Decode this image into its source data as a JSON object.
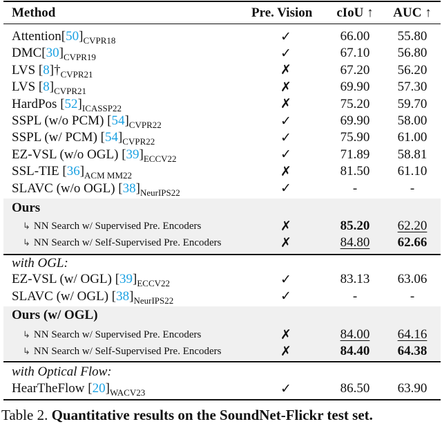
{
  "header": {
    "method": "Method",
    "vision": "Pre. Vision",
    "ciou": "cIoU ↑",
    "auc": "AUC ↑"
  },
  "baselines": [
    {
      "method": "Attention",
      "ref": "50",
      "venue": "CVPR18",
      "vision": "✓",
      "ciou": "66.00",
      "auc": "55.80"
    },
    {
      "method": "DMC",
      "ref": "30",
      "venue": "CVPR19",
      "vision": "✓",
      "ciou": "67.10",
      "auc": "56.80"
    },
    {
      "method": "LVS ",
      "ref": "8",
      "dagger": "†",
      "venue": "CVPR21",
      "vision": "✗",
      "ciou": "67.20",
      "auc": "56.20"
    },
    {
      "method": "LVS ",
      "ref": "8",
      "venue": "CVPR21",
      "vision": "✗",
      "ciou": "69.90",
      "auc": "57.30"
    },
    {
      "method": "HardPos ",
      "ref": "52",
      "venue": "ICASSP22",
      "vision": "✗",
      "ciou": "75.20",
      "auc": "59.70"
    },
    {
      "method": "SSPL (w/o PCM) ",
      "ref": "54",
      "venue": "CVPR22",
      "vision": "✓",
      "ciou": "69.90",
      "auc": "58.00"
    },
    {
      "method": "SSPL (w/ PCM) ",
      "ref": "54",
      "venue": "CVPR22",
      "vision": "✓",
      "ciou": "75.90",
      "auc": "61.00"
    },
    {
      "method": "EZ-VSL (w/o OGL) ",
      "ref": "39",
      "venue": "ECCV22",
      "vision": "✓",
      "ciou": "71.89",
      "auc": "58.81"
    },
    {
      "method": "SSL-TIE ",
      "ref": "36",
      "venue": "ACM MM22",
      "vision": "✗",
      "ciou": "81.50",
      "auc": "61.10"
    },
    {
      "method": "SLAVC (w/o OGL) ",
      "ref": "38",
      "venue": "NeurIPS22",
      "vision": "✓",
      "ciou": "-",
      "auc": "-"
    }
  ],
  "ours": {
    "label": "Ours",
    "rows": [
      {
        "arrow": "↳",
        "method": "NN Search w/ Supervised Pre. Encoders",
        "vision": "✗",
        "ciou": "85.20",
        "ciou_style": "bold",
        "auc": "62.20",
        "auc_style": "underline"
      },
      {
        "arrow": "↳",
        "method": "NN Search w/ Self-Supervised Pre. Encoders",
        "vision": "✗",
        "ciou": "84.80",
        "ciou_style": "underline",
        "auc": "62.66",
        "auc_style": "bold"
      }
    ]
  },
  "ogl": {
    "label": "with OGL:",
    "rows": [
      {
        "method": "EZ-VSL (w/ OGL) ",
        "ref": "39",
        "venue": "ECCV22",
        "vision": "✓",
        "ciou": "83.13",
        "auc": "63.06"
      },
      {
        "method": "SLAVC (w/ OGL) ",
        "ref": "38",
        "venue": "NeurIPS22",
        "vision": "✓",
        "ciou": "-",
        "auc": "-"
      }
    ]
  },
  "ours_ogl": {
    "label": "Ours (w/ OGL)",
    "rows": [
      {
        "arrow": "↳",
        "method": "NN Search w/ Supervised Pre. Encoders",
        "vision": "✗",
        "ciou": "84.00",
        "ciou_style": "underline",
        "auc": "64.16",
        "auc_style": "underline"
      },
      {
        "arrow": "↳",
        "method": "NN Search w/ Self-Supervised Pre. Encoders",
        "vision": "✗",
        "ciou": "84.40",
        "ciou_style": "bold",
        "auc": "64.38",
        "auc_style": "bold"
      }
    ]
  },
  "flow": {
    "label": "with Optical Flow:",
    "rows": [
      {
        "method": "HearTheFlow ",
        "ref": "20",
        "venue": "WACV23",
        "vision": "✓",
        "ciou": "86.50",
        "auc": "63.90"
      }
    ]
  },
  "caption": {
    "prefix": "Table 2. ",
    "text": "Quantitative results on the SoundNet-Flickr test set."
  },
  "colors": {
    "ref_link": "#1ba1e2",
    "highlight_band": "#f0f0f0"
  }
}
